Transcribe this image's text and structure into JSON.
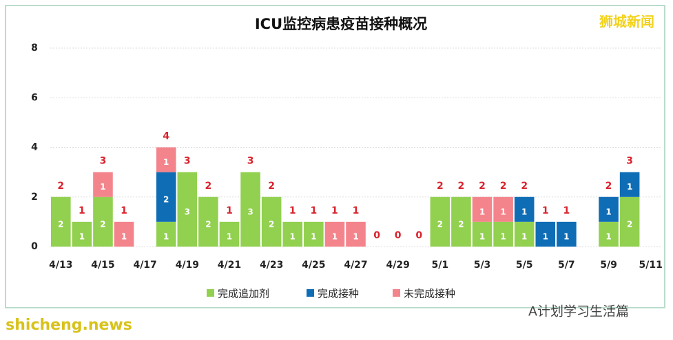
{
  "chart_data": {
    "type": "stacked-bar",
    "title": "ICU监控病患疫苗接种概况",
    "categories": [
      "4/13",
      null,
      "4/15",
      null,
      "4/17",
      null,
      "4/19",
      null,
      "4/21",
      null,
      "4/23",
      null,
      "4/25",
      null,
      "4/27",
      null,
      "4/29",
      null,
      "5/1",
      null,
      "5/3",
      null,
      "5/5",
      null,
      "5/7",
      null,
      "5/9",
      null,
      "5/11"
    ],
    "series": [
      {
        "name": "完成追加剂",
        "color": "#92d050",
        "values": [
          2,
          1,
          2,
          0,
          0,
          1,
          3,
          2,
          1,
          3,
          2,
          1,
          1,
          0,
          0,
          0,
          0,
          0,
          2,
          2,
          1,
          1,
          1,
          0,
          0,
          0,
          1,
          2,
          0
        ]
      },
      {
        "name": "完成接种",
        "color": "#0f6db5",
        "values": [
          0,
          0,
          0,
          0,
          0,
          2,
          0,
          0,
          0,
          0,
          0,
          0,
          0,
          0,
          0,
          0,
          0,
          0,
          0,
          0,
          0,
          0,
          1,
          1,
          1,
          0,
          1,
          1,
          0
        ]
      },
      {
        "name": "未完成接种",
        "color": "#f4848c",
        "values": [
          0,
          0,
          1,
          1,
          0,
          1,
          0,
          0,
          0,
          0,
          0,
          0,
          0,
          1,
          1,
          0,
          0,
          0,
          0,
          0,
          1,
          1,
          0,
          0,
          0,
          0,
          0,
          0,
          0
        ]
      }
    ],
    "totals": [
      2,
      1,
      3,
      1,
      null,
      4,
      3,
      2,
      1,
      3,
      2,
      1,
      1,
      1,
      1,
      0,
      0,
      0,
      2,
      2,
      2,
      2,
      2,
      1,
      1,
      null,
      2,
      3,
      null
    ],
    "ylim": [
      0,
      8
    ],
    "yticks": [
      0,
      2,
      4,
      6,
      8
    ],
    "grid": true
  },
  "watermarks": {
    "brand": "狮城新闻",
    "account": "A计划学习生活篇",
    "site": "shicheng.news"
  }
}
